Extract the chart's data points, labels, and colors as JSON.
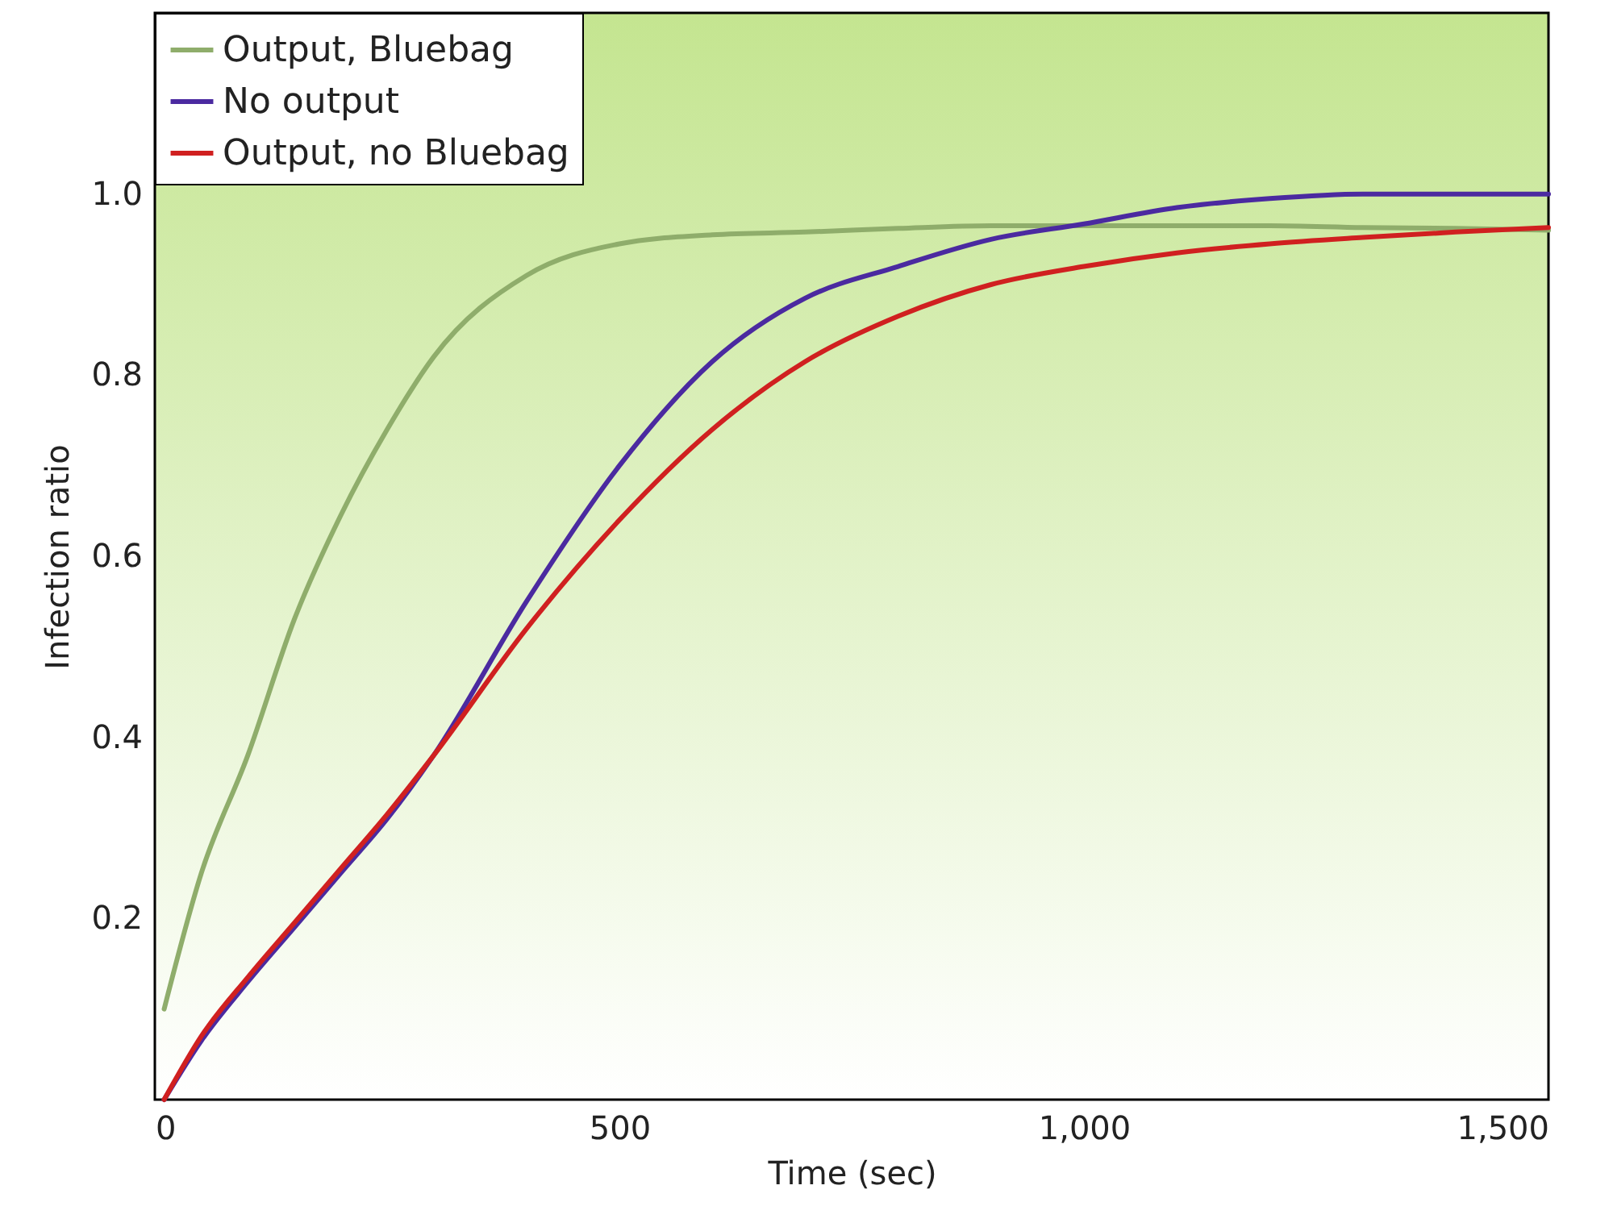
{
  "chart_data": {
    "type": "line",
    "xlabel": "Time (sec)",
    "ylabel": "Infection ratio",
    "xlim": [
      0,
      1500
    ],
    "ylim": [
      0,
      1.2
    ],
    "xticks": [
      0,
      500,
      {
        "value": 1000,
        "label": "1,000"
      },
      {
        "value": 1500,
        "label": "1,500"
      }
    ],
    "yticks": [
      0.2,
      0.4,
      0.6,
      {
        "value": 0.8,
        "label": "0.8"
      },
      {
        "value": 1.0,
        "label": "1.0"
      }
    ],
    "x": [
      10,
      50,
      100,
      150,
      200,
      250,
      300,
      400,
      500,
      600,
      700,
      800,
      900,
      1000,
      1100,
      1200,
      1300,
      1400,
      1500
    ],
    "series": [
      {
        "name": "Output, Bluebag",
        "color": "#8fad6b",
        "values": [
          0.1,
          0.25,
          0.38,
          0.53,
          0.645,
          0.74,
          0.82,
          0.91,
          0.945,
          0.955,
          0.958,
          0.962,
          0.965,
          0.965,
          0.965,
          0.965,
          0.963,
          0.962,
          0.96
        ]
      },
      {
        "name": "No output",
        "color": "#4b2aa0",
        "values": [
          0.0,
          0.065,
          0.13,
          0.19,
          0.25,
          0.31,
          0.38,
          0.55,
          0.7,
          0.815,
          0.885,
          0.92,
          0.95,
          0.967,
          0.985,
          0.995,
          1.0,
          1.0,
          1.0
        ]
      },
      {
        "name": "Output, no Bluebag",
        "color": "#d02020",
        "values": [
          0.0,
          0.07,
          0.135,
          0.195,
          0.255,
          0.315,
          0.38,
          0.52,
          0.64,
          0.74,
          0.815,
          0.865,
          0.9,
          0.92,
          0.935,
          0.945,
          0.952,
          0.958,
          0.963
        ]
      }
    ],
    "grid": false,
    "legend": "top left",
    "marker": "none",
    "line_style": "solid"
  }
}
